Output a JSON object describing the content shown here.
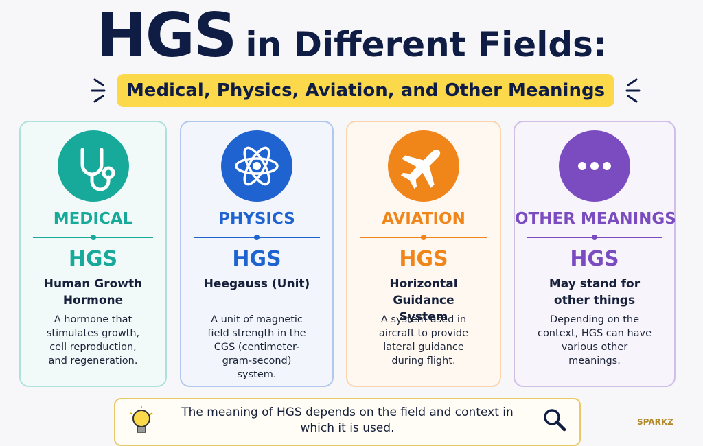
{
  "header": {
    "title_main": "HGS",
    "title_rest": "in Different Fields:",
    "subtitle": "Medical, Physics, Aviation, and Other Meanings"
  },
  "cards": [
    {
      "field": "MEDICAL",
      "acronym": "HGS",
      "meaning": "Human Growth Hormone",
      "description": "A hormone that stimulates growth, cell reproduction, and regeneration.",
      "color": "#17a99a"
    },
    {
      "field": "PHYSICS",
      "acronym": "HGS",
      "meaning": "Heegauss (Unit)",
      "description": "A unit of magnetic field strength in the CGS (centimeter-gram-second) system.",
      "color": "#1e63cf"
    },
    {
      "field": "AVIATION",
      "acronym": "HGS",
      "meaning": "Horizontal Guidance System",
      "description": "A system used in aircraft to provide lateral guidance during flight.",
      "color": "#f0861a"
    },
    {
      "field": "OTHER MEANINGS",
      "acronym": "HGS",
      "meaning": "May stand for other things",
      "description": "Depending on the context, HGS can have various other meanings.",
      "color": "#7a4cbf"
    }
  ],
  "footer": {
    "text": "The meaning of HGS depends on the field and context in which it is used.",
    "brand": "SPARKZ"
  }
}
